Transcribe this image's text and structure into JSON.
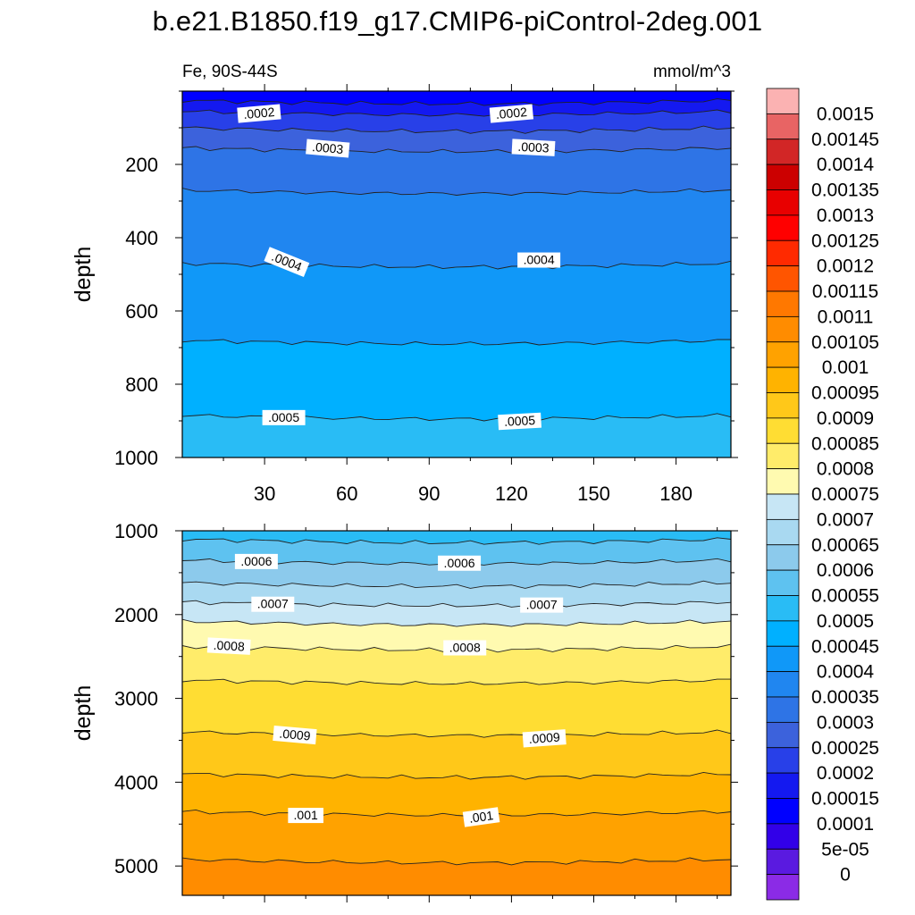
{
  "title": "b.e21.B1850.f19_g17.CMIP6-piControl-2deg.001",
  "left_string": "Fe, 90S-44S",
  "right_string": "mmol/m^3",
  "chart_data": [
    {
      "type": "contour",
      "panel": "upper",
      "ylabel": "depth",
      "ylim": [
        1000,
        0
      ],
      "xlim": [
        0,
        200
      ],
      "xticks": [
        30,
        60,
        90,
        120,
        150,
        180
      ],
      "yticks": [
        200,
        400,
        600,
        800,
        1000
      ],
      "contour_lines": [
        {
          "value": 0.00015,
          "label": "",
          "depth": 25
        },
        {
          "value": 0.0002,
          "label": ".0002",
          "depth": 55
        },
        {
          "value": 0.00025,
          "label": "",
          "depth": 100
        },
        {
          "value": 0.0003,
          "label": ".0003",
          "depth": 155
        },
        {
          "value": 0.00035,
          "label": "",
          "depth": 270
        },
        {
          "value": 0.0004,
          "label": ".0004",
          "depth": 470
        },
        {
          "value": 0.00045,
          "label": "",
          "depth": 680
        },
        {
          "value": 0.0005,
          "label": ".0005",
          "depth": 885
        }
      ],
      "inline_labels": [
        {
          "text": ".0002",
          "x": 28,
          "depth": 55,
          "angle": -5
        },
        {
          "text": ".0002",
          "x": 120,
          "depth": 55,
          "angle": -5
        },
        {
          "text": ".0003",
          "x": 53,
          "depth": 150,
          "angle": 5
        },
        {
          "text": ".0003",
          "x": 128,
          "depth": 148,
          "angle": 3
        },
        {
          "text": ".0004",
          "x": 38,
          "depth": 460,
          "angle": 22
        },
        {
          "text": ".0004",
          "x": 130,
          "depth": 455,
          "angle": 0
        },
        {
          "text": ".0005",
          "x": 37,
          "depth": 885,
          "angle": 0
        },
        {
          "text": ".0005",
          "x": 123,
          "depth": 895,
          "angle": -3
        }
      ]
    },
    {
      "type": "contour",
      "panel": "lower",
      "ylabel": "depth",
      "ylim": [
        5350,
        1000
      ],
      "xlim": [
        0,
        200
      ],
      "yticks": [
        1000,
        2000,
        3000,
        4000,
        5000
      ],
      "contour_lines": [
        {
          "value": 0.00055,
          "label": "",
          "depth": 1100
        },
        {
          "value": 0.0006,
          "label": ".0006",
          "depth": 1350
        },
        {
          "value": 0.00065,
          "label": "",
          "depth": 1620
        },
        {
          "value": 0.0007,
          "label": ".0007",
          "depth": 1850
        },
        {
          "value": 0.00075,
          "label": "",
          "depth": 2080
        },
        {
          "value": 0.0008,
          "label": ".0008",
          "depth": 2380
        },
        {
          "value": 0.00085,
          "label": "",
          "depth": 2780
        },
        {
          "value": 0.0009,
          "label": ".0009",
          "depth": 3400
        },
        {
          "value": 0.00095,
          "label": "",
          "depth": 3900
        },
        {
          "value": 0.001,
          "label": ".001",
          "depth": 4350
        },
        {
          "value": 0.00105,
          "label": "",
          "depth": 4920
        }
      ],
      "inline_labels": [
        {
          "text": ".0006",
          "x": 27,
          "depth": 1340,
          "angle": 0
        },
        {
          "text": ".0006",
          "x": 101,
          "depth": 1360,
          "angle": 0
        },
        {
          "text": ".0007",
          "x": 33,
          "depth": 1850,
          "angle": 0
        },
        {
          "text": ".0007",
          "x": 131,
          "depth": 1860,
          "angle": 0
        },
        {
          "text": ".0008",
          "x": 17,
          "depth": 2350,
          "angle": 3
        },
        {
          "text": ".0008",
          "x": 103,
          "depth": 2370,
          "angle": 0
        },
        {
          "text": ".0009",
          "x": 41,
          "depth": 3410,
          "angle": 5
        },
        {
          "text": ".0009",
          "x": 132,
          "depth": 3450,
          "angle": -4
        },
        {
          "text": ".001",
          "x": 45,
          "depth": 4370,
          "angle": 0
        },
        {
          "text": ".001",
          "x": 109,
          "depth": 4390,
          "angle": -8
        }
      ]
    }
  ],
  "colorbar": {
    "labels": [
      "0.0015",
      "0.00145",
      "0.0014",
      "0.00135",
      "0.0013",
      "0.00125",
      "0.0012",
      "0.00115",
      "0.0011",
      "0.00105",
      "0.001",
      "0.00095",
      "0.0009",
      "0.00085",
      "0.0008",
      "0.00075",
      "0.0007",
      "0.00065",
      "0.0006",
      "0.00055",
      "0.0005",
      "0.00045",
      "0.0004",
      "0.00035",
      "0.0003",
      "0.00025",
      "0.0002",
      "0.00015",
      "0.0001",
      "5e-05",
      "0"
    ],
    "colors": [
      "#FBB2B2",
      "#E86464",
      "#D22626",
      "#CC0000",
      "#E80000",
      "#FF0000",
      "#FF2A00",
      "#FF5500",
      "#FF7800",
      "#FF8C00",
      "#FFA200",
      "#FFB300",
      "#FFC819",
      "#FFDD33",
      "#FFEC6A",
      "#FFFAB0",
      "#C7E6F5",
      "#A9D9F1",
      "#8CCAEC",
      "#5EC2F0",
      "#29BCF5",
      "#00B0FF",
      "#1098F8",
      "#2086F0",
      "#2E74E6",
      "#3C62DC",
      "#2840E8",
      "#1419F0",
      "#0000FF",
      "#3200E8",
      "#5A1AE0",
      "#8B2BE6"
    ]
  }
}
